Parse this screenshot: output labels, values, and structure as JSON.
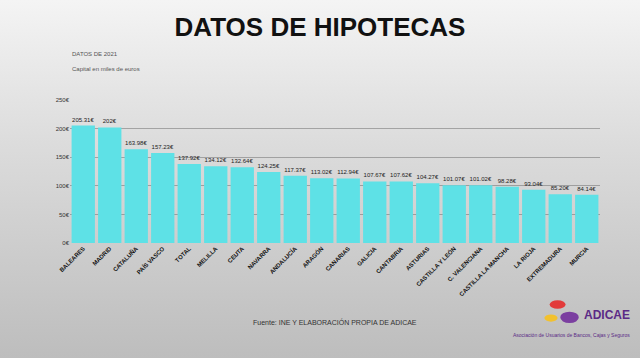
{
  "chart_data": {
    "type": "bar",
    "title": "DATOS DE HIPOTECAS",
    "subtitle": [
      "DATOS DE 2021",
      "Capital en miles de euros"
    ],
    "categories": [
      "BALEARES",
      "MADRID",
      "CATALUÑA",
      "PAÍS VASCO",
      "TOTAL",
      "MELILLA",
      "CEUTA",
      "NAVARRA",
      "ANDALUCÍA",
      "ARAGÓN",
      "CANARIAS",
      "GALICIA",
      "CANTABRIA",
      "ASTURIAS",
      "CASTILLA Y LEÓN",
      "C. VALENCIANA",
      "CASTILLA LA MANCHA",
      "LA RIOJA",
      "EXTREMADURA",
      "MURCIA"
    ],
    "values": [
      205.31,
      202,
      163.98,
      157.23,
      137.92,
      134.12,
      132.64,
      124.25,
      117.37,
      113.02,
      112.94,
      107.67,
      107.62,
      104.27,
      101.07,
      101.02,
      98.28,
      93.04,
      85.2,
      84.14
    ],
    "value_labels": [
      "205.31€",
      "202€",
      "163.98€",
      "157.23€",
      "137.92€",
      "134.12€",
      "132.64€",
      "124.25€",
      "117.37€",
      "113.02€",
      "112.94€",
      "107.67€",
      "107.62€",
      "104.27€",
      "101.07€",
      "101.02€",
      "98.28€",
      "93.04€",
      "85.20€",
      "84.14€"
    ],
    "color": "#5ee1e6",
    "ylim": [
      0,
      250
    ],
    "yticks": [
      {
        "value": 0,
        "label": "0€"
      },
      {
        "value": 50,
        "label": "50€"
      },
      {
        "value": 100,
        "label": "100€"
      },
      {
        "value": 150,
        "label": "150€"
      },
      {
        "value": 200,
        "label": "200€"
      },
      {
        "value": 250,
        "label": "250€"
      }
    ],
    "grid": true,
    "data_labels": true
  },
  "source": "Fuente: INE Y ELABORACIÓN PROPIA DE ADICAE",
  "logo": {
    "name": "ADICAE",
    "subtitle": "Asociación de Usuarios de Bancos, Cajas y Seguros"
  }
}
